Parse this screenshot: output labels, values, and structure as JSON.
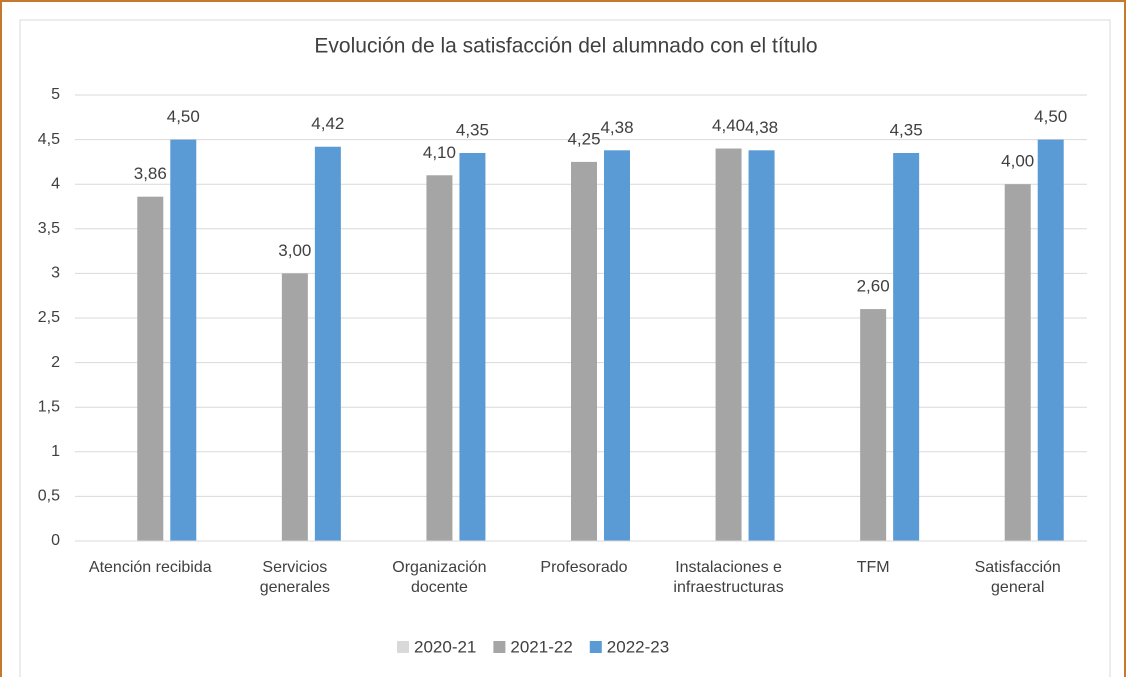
{
  "chart_data": {
    "type": "bar",
    "title": "Evolución de la satisfacción del alumnado con el título",
    "categories": [
      "Atención recibida",
      "Servicios generales",
      "Organización docente",
      "Profesorado",
      "Instalaciones e infraestructuras",
      "TFM",
      "Satisfacción general"
    ],
    "series": [
      {
        "name": "2020-21",
        "color": "#d9d9d9",
        "values": [
          null,
          null,
          null,
          null,
          null,
          null,
          null
        ]
      },
      {
        "name": "2021-22",
        "color": "#a5a5a5",
        "values": [
          3.86,
          3.0,
          4.1,
          4.25,
          4.4,
          2.6,
          4.0
        ],
        "value_labels": [
          "3,86",
          "3,00",
          "4,10",
          "4,25",
          "4,40",
          "2,60",
          "4,00"
        ]
      },
      {
        "name": "2022-23",
        "color": "#5b9bd5",
        "values": [
          4.5,
          4.42,
          4.35,
          4.38,
          4.38,
          4.35,
          4.5
        ],
        "value_labels": [
          "4,50",
          "4,42",
          "4,35",
          "4,38",
          "4,38",
          "4,35",
          "4,50"
        ]
      }
    ],
    "ylim": [
      0,
      5
    ],
    "yticks": [
      0,
      {
        "value": 0.5,
        "label": "0,5"
      },
      1,
      {
        "value": 1.5,
        "label": "1,5"
      },
      2,
      {
        "value": 2.5,
        "label": "2,5"
      },
      3,
      {
        "value": 3.5,
        "label": "3,5"
      },
      4,
      {
        "value": 4.5,
        "label": "4,5"
      },
      5
    ],
    "grid": true,
    "legend": "bottom"
  }
}
